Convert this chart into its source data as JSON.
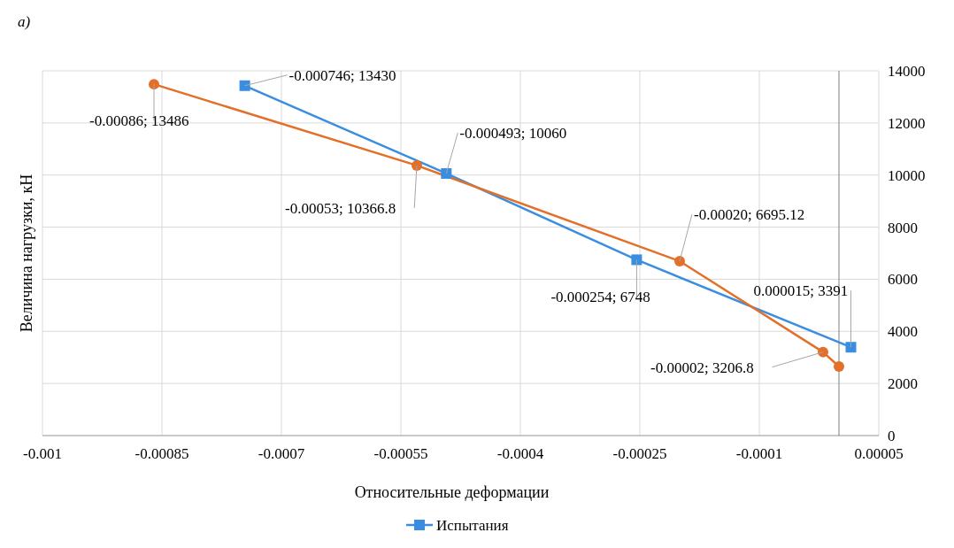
{
  "chart_data": {
    "type": "line",
    "xlabel": "Относительные деформации",
    "ylabel": "Величина нагрузки, кН",
    "annotations": [
      "a)"
    ],
    "xlim": [
      -0.001,
      5e-05
    ],
    "xticks": [
      -0.001,
      -0.00085,
      -0.0007,
      -0.00055,
      -0.0004,
      -0.00025,
      -0.0001,
      {
        "value": 5e-05,
        "label": "0.00005"
      }
    ],
    "ylim": [
      0,
      14000
    ],
    "yticks": [
      0,
      2000,
      4000,
      6000,
      8000,
      10000,
      12000,
      14000
    ],
    "grid": true,
    "legend": "bottom",
    "line_style": "solid",
    "series": [
      {
        "name": "Испытания",
        "color": "#3b8de0",
        "marker": "square",
        "x": [
          -0.000746,
          -0.000493,
          -0.000254,
          1.5e-05
        ],
        "values": [
          13430,
          10060,
          6748,
          3391
        ],
        "value_labels": [
          "-0.000746; 13430",
          "-0.000493; 10060",
          "-0.000254; 6748",
          "0.000015; 3391"
        ]
      },
      {
        "color": "#e2702a",
        "marker": "circle",
        "x": [
          -0.00086,
          -0.00053,
          -0.0002,
          -2e-05,
          0
        ],
        "values": [
          13486,
          10366.8,
          6695.12,
          3206.8,
          2650
        ],
        "value_labels": [
          "-0.00086; 13486",
          "-0.00053; 10366.8",
          "-0.00020; 6695.12",
          "-0.00002; 3206.8",
          null
        ]
      }
    ]
  }
}
